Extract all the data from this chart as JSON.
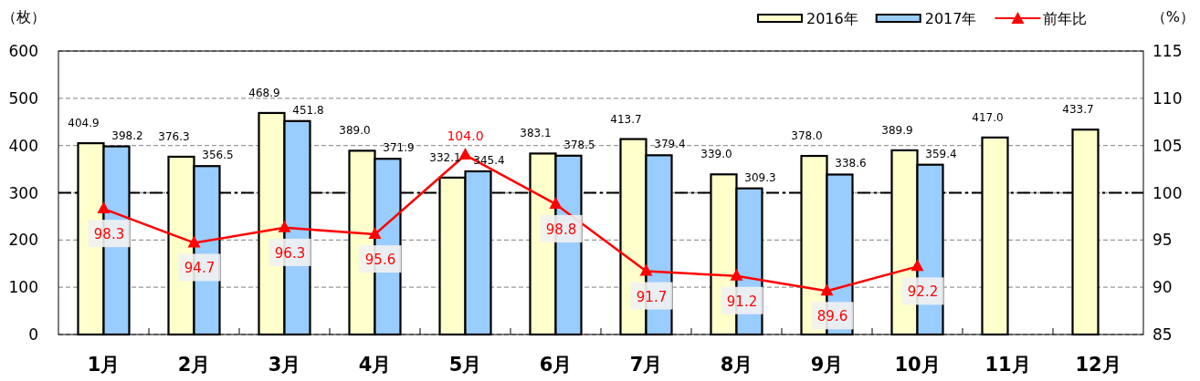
{
  "chart_data": {
    "type": "bar",
    "ylabel": "（枚）",
    "y2label": "（%）",
    "categories": [
      "1月",
      "2月",
      "3月",
      "4月",
      "5月",
      "6月",
      "7月",
      "8月",
      "9月",
      "10月",
      "11月",
      "12月"
    ],
    "series": [
      {
        "name": "2016年",
        "color": "#ffffcc",
        "values": [
          404.9,
          376.3,
          468.9,
          389.0,
          332.1,
          383.1,
          413.7,
          339.0,
          378.0,
          389.9,
          417.0,
          433.7
        ],
        "value_labels": [
          "404.9",
          "376.3",
          "468.9",
          "389.0",
          "332.1",
          "383.1",
          "413.7",
          "339.0",
          "378.0",
          "389.9",
          "417.0",
          "433.7"
        ]
      },
      {
        "name": "2017年",
        "color": "#99ccff",
        "values": [
          398.2,
          356.5,
          451.8,
          371.9,
          345.4,
          378.5,
          379.4,
          309.3,
          338.6,
          359.4,
          null,
          null
        ],
        "value_labels": [
          "398.2",
          "356.5",
          "451.8",
          "371.9",
          "345.4",
          "378.5",
          "379.4",
          "309.3",
          "338.6",
          "359.4",
          null,
          null
        ]
      },
      {
        "name": "前年比",
        "type": "line",
        "axis": "y2",
        "color": "#ff0000",
        "marker": "triangle",
        "values": [
          98.3,
          94.7,
          96.3,
          95.6,
          104.0,
          98.8,
          91.7,
          91.2,
          89.6,
          92.2,
          null,
          null
        ],
        "value_labels": [
          "98.3",
          "94.7",
          "96.3",
          "95.6",
          "104.0",
          "98.8",
          "91.7",
          "91.2",
          "89.6",
          "92.2",
          null,
          null
        ]
      }
    ],
    "ylim": [
      0,
      600
    ],
    "yticks": [
      0,
      100,
      200,
      300,
      400,
      500,
      600
    ],
    "y2lim": [
      85,
      115
    ],
    "y2ticks": [
      85,
      90,
      95,
      100,
      105,
      110,
      115
    ],
    "ref_lines": [
      {
        "axis": "y2",
        "value": 100,
        "color": "#000000",
        "line_style": "dashdot"
      }
    ],
    "grid": "y",
    "legend": "top right"
  }
}
